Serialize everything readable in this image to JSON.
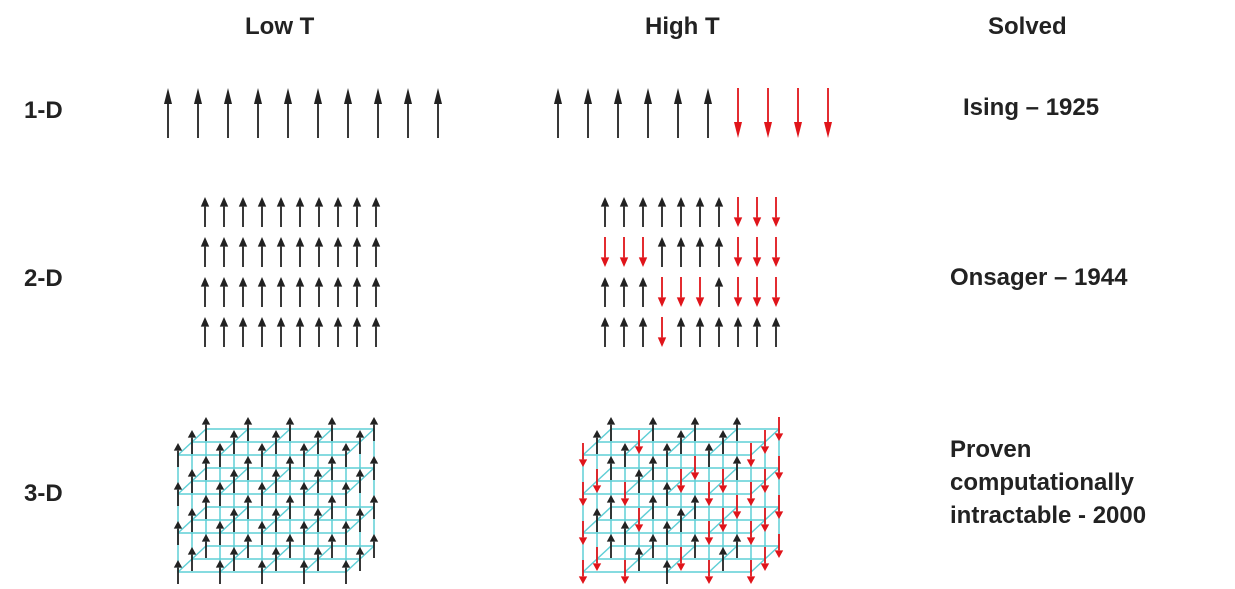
{
  "headers": {
    "low_t": "Low T",
    "high_t": "High T",
    "solved": "Solved"
  },
  "rows": [
    {
      "dimension": "1-D",
      "solved": "Ising – 1925"
    },
    {
      "dimension": "2-D",
      "solved": "Onsager – 1944"
    },
    {
      "dimension": "3-D",
      "solved_lines": [
        "Proven",
        "computationally",
        "intractable - 2000"
      ]
    }
  ],
  "colors": {
    "spin_up": "#222222",
    "spin_down": "#e0141a",
    "lattice": "#5fcfd6"
  },
  "lattices": {
    "one_d_low": "↑↑↑↑↑↑↑↑↑↑",
    "one_d_high": "↑↑↑↑↑↑↓↓↓↓",
    "two_d_low": [
      "↑↑↑↑↑↑↑↑↑↑",
      "↑↑↑↑↑↑↑↑↑↑",
      "↑↑↑↑↑↑↑↑↑↑",
      "↑↑↑↑↑↑↑↑↑↑"
    ],
    "two_d_high": [
      "↑↑↑↑↑↑↑↓↓↓",
      "↓↓↓↑↑↑↑↓↓↓",
      "↑↑↑↓↓↓↑↓↓↓",
      "↑↑↑↓↑↑↑↑↑↑"
    ],
    "three_d_low": {
      "front": [
        "↑↑↑↑↑",
        "↑↑↑↑↑",
        "↑↑↑↑↑",
        "↑↑↑↑↑"
      ],
      "mid": [
        "↑↑↑↑↑",
        "↑↑↑↑↑",
        "↑↑↑↑↑",
        "↑↑↑↑↑"
      ],
      "back": [
        "↑↑↑↑↑",
        "↑↑↑↑↑",
        "↑↑↑↑↑",
        "↑↑↑↑↑"
      ]
    },
    "three_d_high": {
      "front": [
        "↓↑↑↑↓",
        "↓↓↑↓↓",
        "↓↑↑↓↓",
        "↓↓↑↓↓"
      ],
      "mid": [
        "↑↓↑↑↓",
        "↓↑↓↓↓",
        "↑↓↑↓↓",
        "↓↑↓↑↓"
      ],
      "back": [
        "↑↑↑↑↓",
        "↑↑↓↑↓",
        "↑↑↑↓↓",
        "↑↑↑↑↓"
      ]
    }
  }
}
